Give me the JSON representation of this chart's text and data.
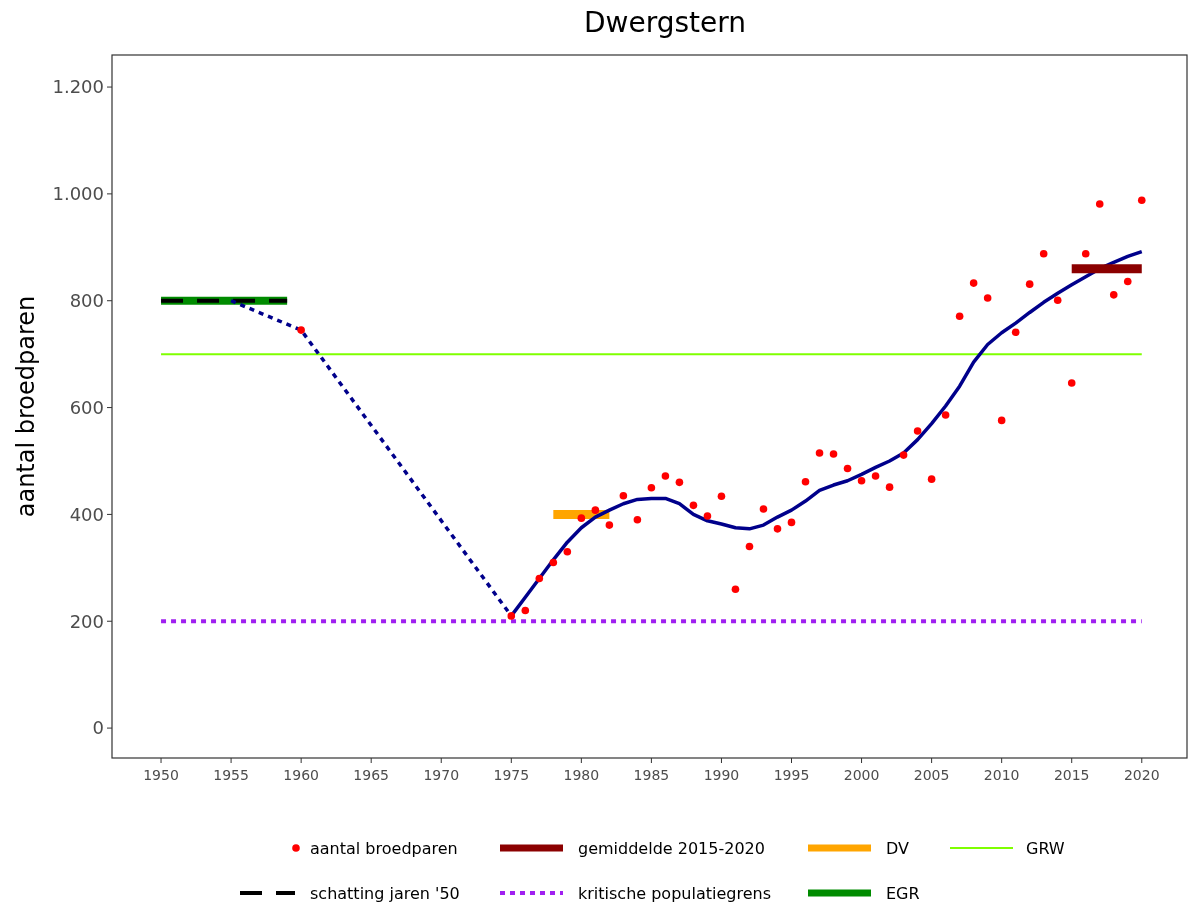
{
  "chart_data": {
    "type": "line",
    "title": "Dwergstern",
    "ylabel": "aantal broedparen",
    "legend": "bottom",
    "grid": false,
    "xlim": [
      1946.5,
      2023.3
    ],
    "ylim": [
      -56,
      1260
    ],
    "xticks": [
      1950,
      1955,
      1960,
      1965,
      1970,
      1975,
      1980,
      1985,
      1990,
      1995,
      2000,
      2005,
      2010,
      2015,
      2020
    ],
    "yticks": [
      0,
      200,
      400,
      600,
      800,
      {
        "value": 1000,
        "label": "1.000"
      },
      {
        "value": 1200,
        "label": "1.200"
      }
    ],
    "series": [
      {
        "name": "aantal broedparen",
        "type": "scatter",
        "marker": "circle",
        "color": "#ff0000",
        "x": [
          1960,
          1975,
          1976,
          1977,
          1978,
          1979,
          1980,
          1981,
          1982,
          1983,
          1984,
          1985,
          1986,
          1987,
          1988,
          1989,
          1990,
          1991,
          1992,
          1993,
          1994,
          1995,
          1996,
          1997,
          1998,
          1999,
          2000,
          2001,
          2002,
          2003,
          2004,
          2005,
          2006,
          2007,
          2008,
          2009,
          2010,
          2011,
          2012,
          2013,
          2014,
          2015,
          2016,
          2017,
          2018,
          2019,
          2020
        ],
        "values": [
          745,
          210,
          220,
          280,
          310,
          330,
          393,
          408,
          380,
          435,
          390,
          450,
          472,
          460,
          417,
          397,
          434,
          260,
          340,
          410,
          373,
          385,
          461,
          515,
          513,
          486,
          463,
          472,
          451,
          511,
          556,
          466,
          586,
          771,
          833,
          805,
          576,
          741,
          831,
          888,
          801,
          646,
          888,
          981,
          811,
          836,
          988
        ]
      },
      {
        "name": "gemiddelde 2015-2020",
        "line_style": "solid",
        "color": "#8b0000",
        "x": [
          2015,
          2020
        ],
        "values": [
          860,
          860
        ]
      },
      {
        "name": "DV",
        "line_style": "solid",
        "color": "#ffa500",
        "x": [
          1978,
          1982
        ],
        "values": [
          400,
          400
        ]
      },
      {
        "name": "GRW",
        "line_style": "solid",
        "color": "#7fff00",
        "x": [
          1950,
          2020
        ],
        "values": [
          700,
          700
        ]
      },
      {
        "name": "schatting jaren '50",
        "line_style": "dashed",
        "color": "#000000",
        "x": [
          1950,
          1959
        ],
        "values": [
          800,
          800
        ]
      },
      {
        "name": "kritische populatiegrens",
        "line_style": "dotted",
        "color": "#a020f0",
        "x": [
          1950,
          2020
        ],
        "values": [
          200,
          200
        ]
      },
      {
        "name": "EGR",
        "line_style": "solid",
        "color": "#008b00",
        "x": [
          1950,
          1959
        ],
        "values": [
          800,
          800
        ]
      },
      {
        "line_style": "solid",
        "color": "#00008b",
        "x": [
          1975,
          1976,
          1977,
          1978,
          1979,
          1980,
          1981,
          1982,
          1983,
          1984,
          1985,
          1986,
          1987,
          1988,
          1989,
          1990,
          1991,
          1992,
          1993,
          1994,
          1995,
          1996,
          1997,
          1998,
          1999,
          2000,
          2001,
          2002,
          2003,
          2004,
          2005,
          2006,
          2007,
          2008,
          2009,
          2010,
          2011,
          2012,
          2013,
          2014,
          2015,
          2016,
          2017,
          2018,
          2019,
          2020
        ],
        "values": [
          210,
          245,
          280,
          315,
          348,
          375,
          395,
          408,
          420,
          428,
          430,
          430,
          420,
          400,
          388,
          382,
          375,
          373,
          380,
          395,
          408,
          425,
          445,
          455,
          463,
          475,
          488,
          500,
          515,
          540,
          570,
          603,
          640,
          685,
          718,
          740,
          758,
          778,
          797,
          814,
          830,
          845,
          860,
          872,
          883,
          892
        ]
      },
      {
        "line_style": "dotted",
        "color": "#00008b",
        "x": [
          1955,
          1960,
          1975
        ],
        "values": [
          800,
          745,
          210
        ]
      }
    ]
  }
}
